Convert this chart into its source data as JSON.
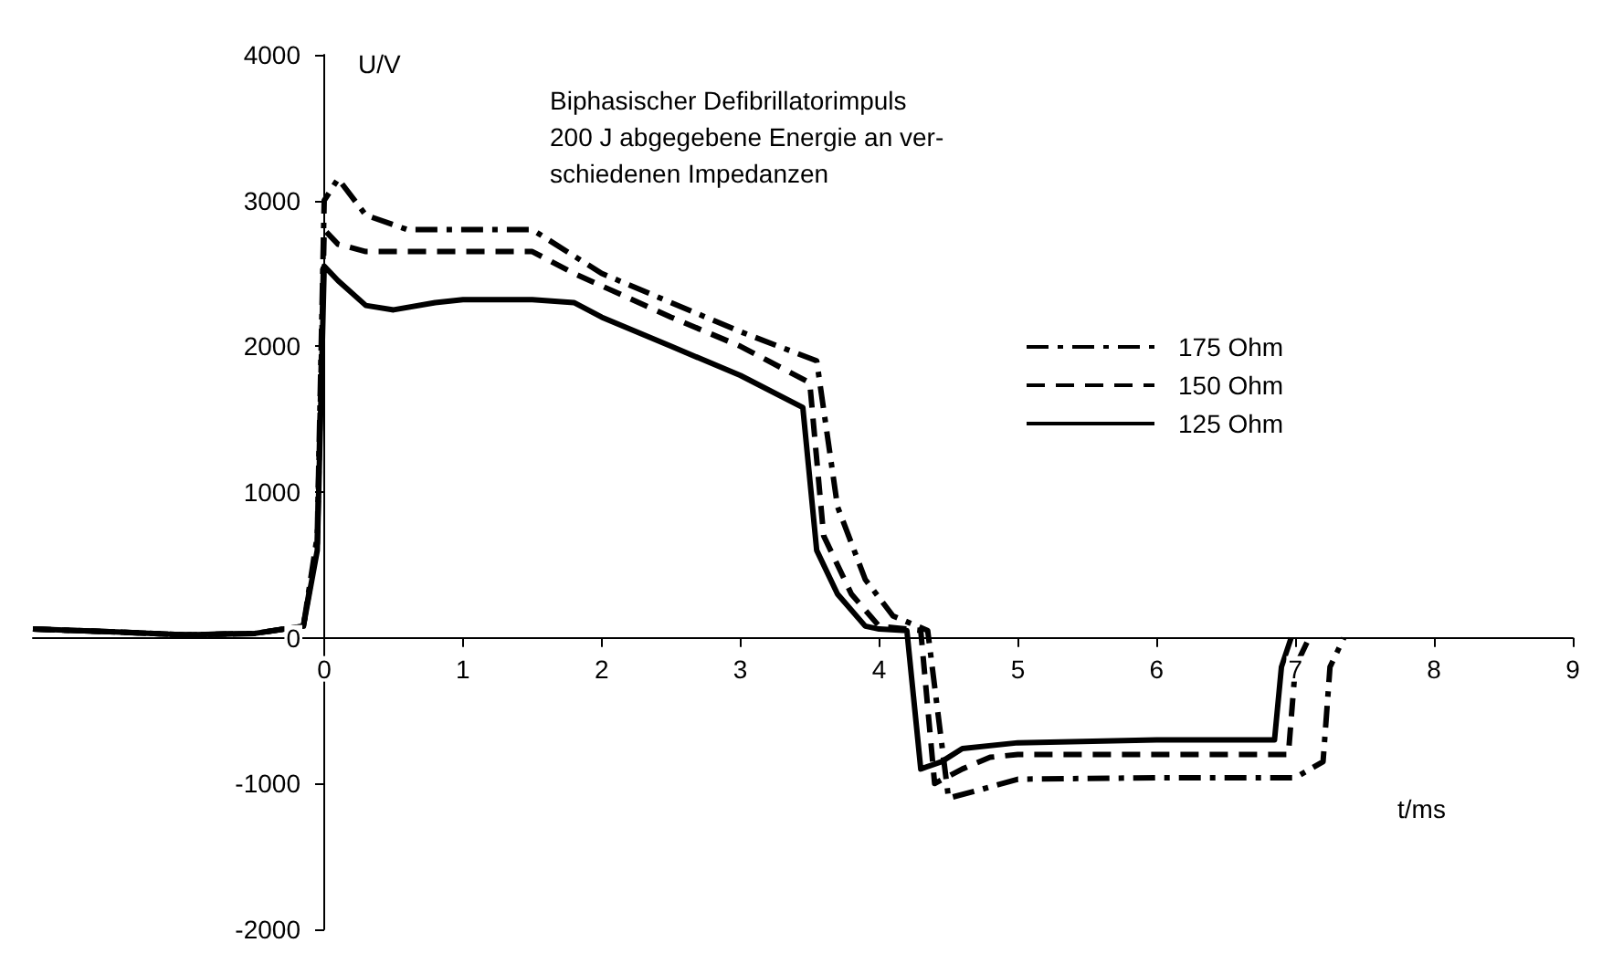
{
  "chart_data": {
    "type": "line",
    "title": "Biphasischer Defibrillatorimpuls\n200 J abgegebene Energie an ver-\nschiedenen Impedanzen",
    "xlabel": "t/ms",
    "ylabel": "U/V",
    "xlim": [
      -2.1,
      9
    ],
    "ylim": [
      -2000,
      4000
    ],
    "xticks": [
      0,
      1,
      2,
      3,
      4,
      5,
      6,
      7,
      8,
      9
    ],
    "yticks": [
      {
        "value": -2000,
        "label": "-2000"
      },
      {
        "value": -1000,
        "label": "-1000"
      },
      0,
      {
        "value": 1000,
        "label": "1000"
      },
      {
        "value": 2000,
        "label": "2000"
      },
      {
        "value": 3000,
        "label": "3000"
      },
      {
        "value": 4000,
        "label": "4000"
      }
    ],
    "grid": false,
    "legend": "top right",
    "marker": "none",
    "series": [
      {
        "name": "175 Ohm",
        "color": "#000000",
        "line_style": "dashdot",
        "x": [
          -2.1,
          -1.5,
          -1,
          -0.5,
          -0.15,
          -0.05,
          0,
          0.1,
          0.3,
          0.6,
          1,
          1.5,
          2,
          2.5,
          3,
          3.55,
          3.7,
          3.9,
          4.1,
          4.35,
          4.5,
          4.7,
          5,
          6,
          7,
          7.2,
          7.25,
          7.35
        ],
        "values": [
          60,
          40,
          20,
          30,
          80,
          700,
          3000,
          3150,
          2900,
          2800,
          2800,
          2800,
          2500,
          2300,
          2100,
          1900,
          900,
          400,
          150,
          50,
          -1100,
          -1050,
          -970,
          -960,
          -960,
          -850,
          -200,
          0
        ]
      },
      {
        "name": "150 Ohm",
        "color": "#000000",
        "line_style": "dashed",
        "x": [
          -2.1,
          -1.5,
          -1,
          -0.5,
          -0.15,
          -0.05,
          0,
          0.1,
          0.3,
          1,
          1.5,
          1.8,
          2.5,
          3,
          3.5,
          3.6,
          3.8,
          4,
          4.3,
          4.4,
          4.6,
          4.8,
          5,
          6,
          6.95,
          7,
          7.1
        ],
        "values": [
          60,
          40,
          20,
          30,
          80,
          650,
          2800,
          2700,
          2650,
          2650,
          2650,
          2500,
          2200,
          2000,
          1750,
          700,
          300,
          80,
          50,
          -1000,
          -900,
          -820,
          -800,
          -800,
          -800,
          -200,
          0
        ]
      },
      {
        "name": "125 Ohm",
        "color": "#000000",
        "line_style": "solid",
        "x": [
          -2.1,
          -1.5,
          -1,
          -0.5,
          -0.15,
          -0.05,
          0,
          0.1,
          0.3,
          0.5,
          0.8,
          1,
          1.5,
          1.8,
          2,
          2.5,
          3,
          3.45,
          3.55,
          3.7,
          3.9,
          4,
          4.2,
          4.3,
          4.45,
          4.6,
          5,
          6,
          6.85,
          6.9,
          6.97
        ],
        "values": [
          60,
          40,
          20,
          30,
          80,
          600,
          2550,
          2450,
          2280,
          2250,
          2300,
          2320,
          2320,
          2300,
          2200,
          2000,
          1800,
          1580,
          600,
          300,
          80,
          60,
          50,
          -900,
          -850,
          -760,
          -720,
          -700,
          -700,
          -200,
          0
        ]
      }
    ]
  }
}
